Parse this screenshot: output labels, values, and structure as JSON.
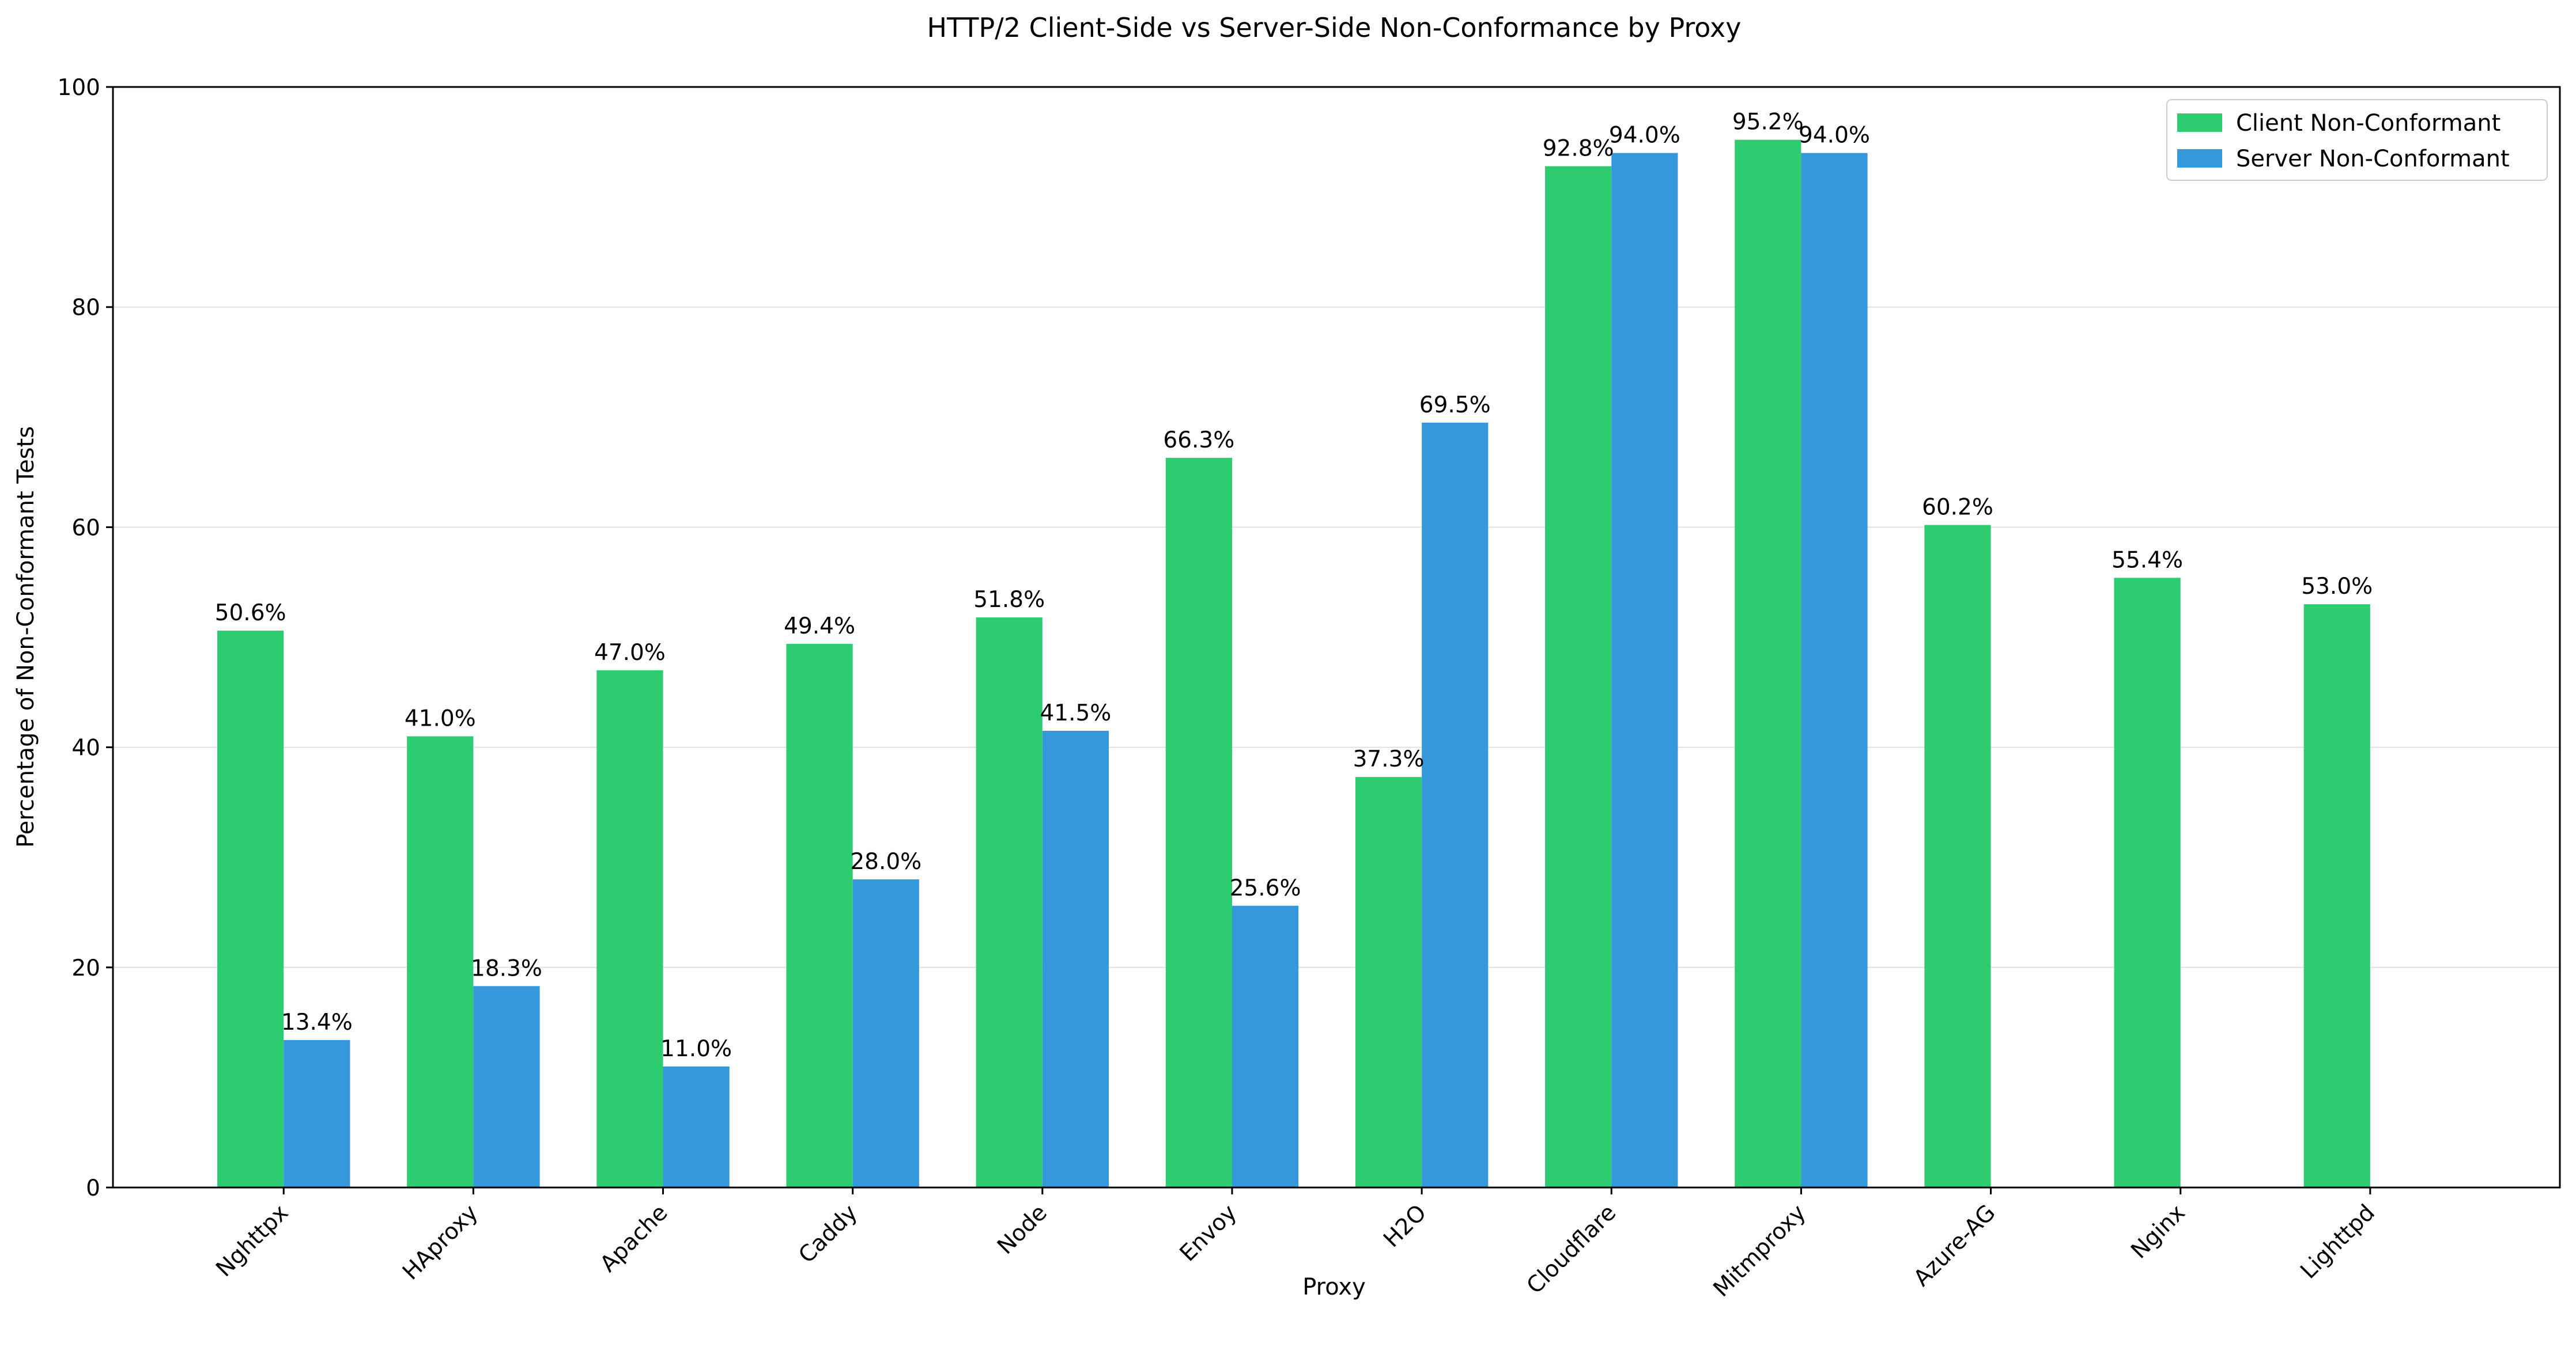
{
  "chart_data": {
    "type": "bar",
    "title": "HTTP/2 Client-Side vs Server-Side Non-Conformance by Proxy",
    "xlabel": "Proxy",
    "ylabel": "Percentage of Non-Conformant Tests",
    "ylim": [
      0,
      100
    ],
    "yticks": [
      0,
      20,
      40,
      60,
      80,
      100
    ],
    "grid": "y",
    "legend_position": "top-right",
    "categories": [
      "Nghttpx",
      "HAproxy",
      "Apache",
      "Caddy",
      "Node",
      "Envoy",
      "H2O",
      "Cloudflare",
      "Mitmproxy",
      "Azure-AG",
      "Nginx",
      "Lighttpd"
    ],
    "series": [
      {
        "name": "Client Non-Conformant",
        "color": "#2ecc71",
        "values": [
          50.6,
          41.0,
          47.0,
          49.4,
          51.8,
          66.3,
          37.3,
          92.8,
          95.2,
          60.2,
          55.4,
          53.0
        ],
        "labels": [
          "50.6%",
          "41.0%",
          "47.0%",
          "49.4%",
          "51.8%",
          "66.3%",
          "37.3%",
          "92.8%",
          "95.2%",
          "60.2%",
          "55.4%",
          "53.0%"
        ]
      },
      {
        "name": "Server Non-Conformant",
        "color": "#3498db",
        "values": [
          13.4,
          18.3,
          11.0,
          28.0,
          41.5,
          25.6,
          69.5,
          94.0,
          94.0,
          null,
          null,
          null
        ],
        "labels": [
          "13.4%",
          "18.3%",
          "11.0%",
          "28.0%",
          "41.5%",
          "25.6%",
          "69.5%",
          "94.0%",
          "94.0%",
          null,
          null,
          null
        ]
      }
    ]
  }
}
